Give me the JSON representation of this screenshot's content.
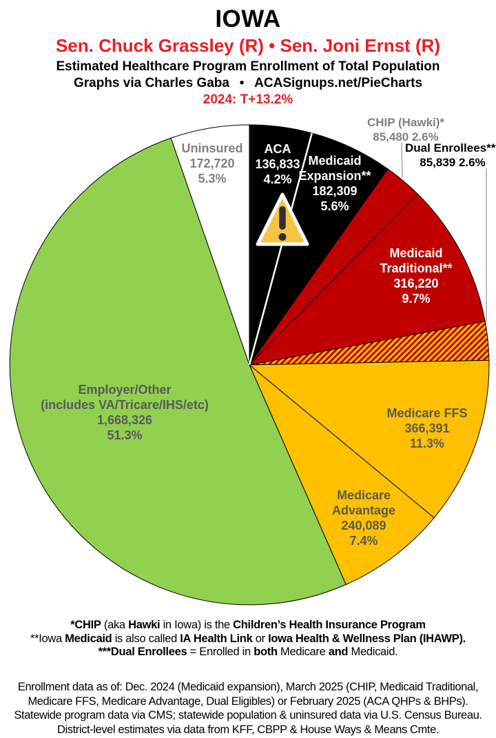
{
  "header": {
    "title": "IOWA",
    "senators": "Sen. Chuck Grassley (R) • Sen. Joni Ernst (R)",
    "subtitle_line1": "Estimated Healthcare Program Enrollment of Total Population",
    "subtitle_line2": "Graphs via Charles Gaba  •  ACASignups.net/PieCharts",
    "partisan_lean": "2024: T+13.2%",
    "accent_red": "#ed1c24"
  },
  "chart_data": {
    "type": "pie",
    "title": "Estimated Healthcare Program Enrollment of Total Population",
    "start_angle_deg": 0,
    "direction": "clockwise",
    "total_pct": 100.0,
    "slice_border_color": "#000000",
    "aca_divider_color": "#ffffff",
    "hatch_colors": [
      "#c00000",
      "#ffc000"
    ],
    "warning_fill": "#f6c445",
    "warning_mark": "#2f2f2f",
    "slices": [
      {
        "id": "aca",
        "label": "ACA",
        "enrollment": 136833,
        "enrollment_display": "136,833",
        "pct": 4.2,
        "color": "#000000"
      },
      {
        "id": "medicaid-expansion",
        "label": "Medicaid Expansion**",
        "enrollment": 182309,
        "enrollment_display": "182,309",
        "pct": 5.6,
        "color": "#000000"
      },
      {
        "id": "chip",
        "label": "CHIP (Hawki)*",
        "enrollment": 85480,
        "enrollment_display": "85,480",
        "pct": 2.6,
        "color": "#c00000"
      },
      {
        "id": "medicaid-traditional",
        "label": "Medicaid Traditional**",
        "enrollment": 316220,
        "enrollment_display": "316,220",
        "pct": 9.7,
        "color": "#c00000"
      },
      {
        "id": "dual-enrollees",
        "label": "Dual Enrollees***",
        "enrollment": 85839,
        "enrollment_display": "85,839",
        "pct": 2.6,
        "color": "hatch"
      },
      {
        "id": "medicare-ffs",
        "label": "Medicare FFS",
        "enrollment": 366391,
        "enrollment_display": "366,391",
        "pct": 11.3,
        "color": "#ffc000"
      },
      {
        "id": "medicare-advantage",
        "label": "Medicare Advantage",
        "enrollment": 240089,
        "enrollment_display": "240,089",
        "pct": 7.4,
        "color": "#ffc000"
      },
      {
        "id": "employer-other",
        "label": "Employer/Other (includes VA/Tricare/IHS/etc)",
        "enrollment": 1668326,
        "enrollment_display": "1,668,326",
        "pct": 51.3,
        "color": "#92d050"
      },
      {
        "id": "uninsured",
        "label": "Uninsured",
        "enrollment": 172720,
        "enrollment_display": "172,720",
        "pct": 5.3,
        "color": "#ffffff"
      }
    ]
  },
  "labels": {
    "uninsured": [
      "Uninsured",
      "172,720",
      "5.3%"
    ],
    "aca": [
      "ACA",
      "136,833",
      "4.2%"
    ],
    "medicaid_expansion": [
      "Medicaid",
      "Expansion**",
      "182,309",
      "5.6%"
    ],
    "chip": [
      "CHIP (Hawki)*",
      "85,480 2.6%"
    ],
    "dual": [
      "Dual Enrollees***",
      "85,839 2.6%"
    ],
    "medicaid_traditional": [
      "Medicaid",
      "Traditional**",
      "316,220",
      "9.7%"
    ],
    "medicare_ffs": [
      "Medicare FFS",
      "366,391",
      "11.3%"
    ],
    "medicare_advantage": [
      "Medicare",
      "Advantage",
      "240,089",
      "7.4%"
    ],
    "employer": [
      "Employer/Other",
      "(includes VA/Tricare/IHS/etc)",
      "1,668,326",
      "51.3%"
    ]
  },
  "icons": {
    "aca_overlay": "warning-triangle-icon"
  },
  "footnotes": [
    [
      {
        "t": "*CHIP",
        "b": true
      },
      {
        "t": " (aka ",
        "b": false
      },
      {
        "t": "Hawki",
        "b": true
      },
      {
        "t": " in Iowa) is the ",
        "b": false
      },
      {
        "t": "Children’s Health Insurance Program",
        "b": true
      }
    ],
    [
      {
        "t": "**Iowa ",
        "b": false
      },
      {
        "t": "Medicaid",
        "b": true
      },
      {
        "t": " is also called ",
        "b": false
      },
      {
        "t": "IA Health Link",
        "b": true
      },
      {
        "t": " or ",
        "b": false
      },
      {
        "t": "Iowa Health & Wellness Plan (IHAWP).",
        "b": true
      }
    ],
    [
      {
        "t": "***Dual Enrollees",
        "b": true
      },
      {
        "t": " = Enrolled in ",
        "b": false
      },
      {
        "t": "both",
        "b": true
      },
      {
        "t": " Medicare ",
        "b": false
      },
      {
        "t": "and",
        "b": true
      },
      {
        "t": " Medicaid.",
        "b": false
      }
    ]
  ],
  "source_note": [
    "Enrollment data as of: Dec. 2024 (Medicaid expansion), March 2025 (CHIP, Medicaid Traditional,",
    "Medicare FFS, Medicare Advantage, Dual Eligibles) or February 2025 (ACA QHPs & BHPs).",
    "Statewide program data via CMS; statewide population & uninsured data via U.S. Census Bureau.",
    "District-level estimates via data from KFF, CBPP & House Ways & Means Cmte."
  ]
}
